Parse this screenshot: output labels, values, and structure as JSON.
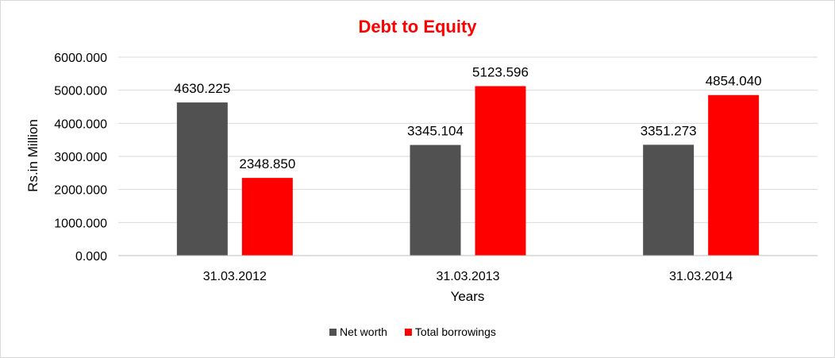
{
  "chart_data": {
    "type": "bar",
    "title": "Debt to Equity",
    "xlabel": "Years",
    "ylabel": "Rs.in Million",
    "categories": [
      "31.03.2012",
      "31.03.2013",
      "31.03.2014"
    ],
    "series": [
      {
        "name": "Net worth",
        "color": "#515151",
        "values": [
          4630.225,
          3345.104,
          3351.273
        ],
        "labels": [
          "4630.225",
          "3345.104",
          "3351.273"
        ]
      },
      {
        "name": "Total borrowings",
        "color": "#ff0000",
        "values": [
          2348.85,
          5123.596,
          4854.04
        ],
        "labels": [
          "2348.850",
          "5123.596",
          "4854.040"
        ]
      }
    ],
    "ylim": [
      0,
      6000
    ],
    "yticks": [
      0,
      1000,
      2000,
      3000,
      4000,
      5000,
      6000
    ],
    "ytick_labels": [
      "0.000",
      "1000.000",
      "2000.000",
      "3000.000",
      "4000.000",
      "5000.000",
      "6000.000"
    ],
    "grid": true,
    "legend_position": "bottom",
    "title_color": "#ff0000"
  }
}
